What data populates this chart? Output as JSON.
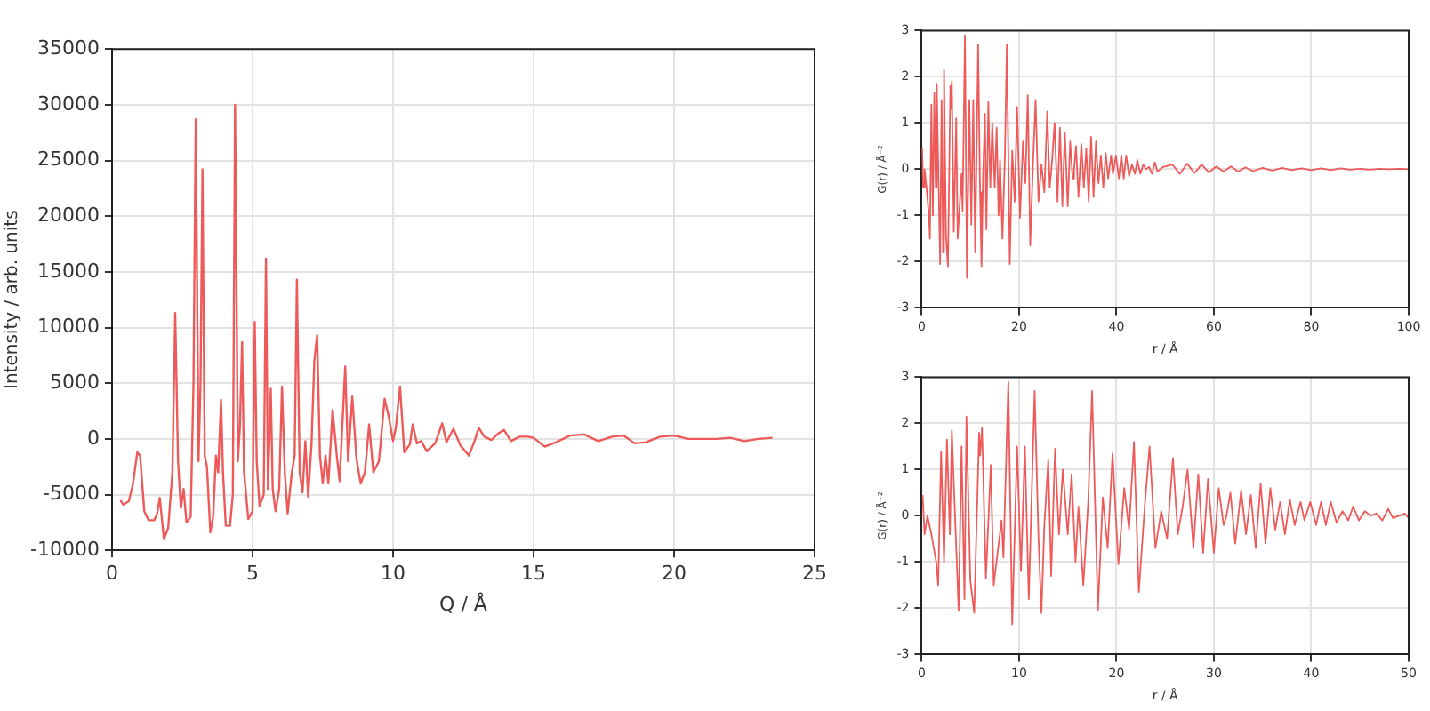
{
  "chart_data": [
    {
      "type": "line",
      "xlabel": "Q / Å",
      "ylabel": "Intensity / arb. units",
      "xlim": [
        0,
        25
      ],
      "xticks": [
        0,
        5,
        10,
        15,
        20,
        25
      ],
      "ylim": [
        -10000,
        35000
      ],
      "yticks": [
        -10000,
        -5000,
        0,
        5000,
        10000,
        15000,
        20000,
        25000,
        30000,
        35000
      ],
      "grid": true,
      "legend": false,
      "marker": "none",
      "line_style": "solid",
      "series": [
        {
          "color": "#ee5a5a",
          "x": [
            0.3,
            0.4,
            0.6,
            0.75,
            0.9,
            1.0,
            1.15,
            1.3,
            1.5,
            1.6,
            1.7,
            1.85,
            2.0,
            2.15,
            2.25,
            2.35,
            2.45,
            2.55,
            2.65,
            2.8,
            2.9,
            2.98,
            3.08,
            3.15,
            3.22,
            3.3,
            3.38,
            3.5,
            3.6,
            3.7,
            3.78,
            3.88,
            3.95,
            4.05,
            4.2,
            4.3,
            4.38,
            4.48,
            4.55,
            4.63,
            4.7,
            4.85,
            5.0,
            5.08,
            5.15,
            5.25,
            5.4,
            5.48,
            5.55,
            5.65,
            5.72,
            5.82,
            5.95,
            6.05,
            6.15,
            6.25,
            6.4,
            6.5,
            6.58,
            6.68,
            6.78,
            6.88,
            6.98,
            7.1,
            7.2,
            7.3,
            7.4,
            7.5,
            7.6,
            7.7,
            7.85,
            8.0,
            8.1,
            8.3,
            8.4,
            8.55,
            8.7,
            8.85,
            9.0,
            9.15,
            9.3,
            9.5,
            9.7,
            9.85,
            10.0,
            10.1,
            10.25,
            10.4,
            10.6,
            10.7,
            10.85,
            11.0,
            11.2,
            11.5,
            11.75,
            11.9,
            12.15,
            12.4,
            12.7,
            12.9,
            13.05,
            13.25,
            13.5,
            13.75,
            13.95,
            14.2,
            14.5,
            14.8,
            15.0,
            15.4,
            15.8,
            16.3,
            16.8,
            17.3,
            17.8,
            18.2,
            18.6,
            19.0,
            19.5,
            20.0,
            20.5,
            21.0,
            21.5,
            22.0,
            22.5,
            23.0,
            23.5
          ],
          "values": [
            -5500,
            -5900,
            -5600,
            -4000,
            -1200,
            -1500,
            -6500,
            -7300,
            -7300,
            -6800,
            -5300,
            -9000,
            -8000,
            -3000,
            11300,
            -2000,
            -6200,
            -4500,
            -7500,
            -7000,
            5000,
            28700,
            -2000,
            5000,
            24200,
            -1500,
            -2500,
            -8400,
            -7000,
            -1500,
            -3000,
            3500,
            -3000,
            -7800,
            -7800,
            -5000,
            30000,
            -2000,
            1000,
            8700,
            -3000,
            -7200,
            -6500,
            10500,
            -2000,
            -6000,
            -5000,
            16200,
            -4500,
            4500,
            -4500,
            -6500,
            -4500,
            4700,
            -3000,
            -6700,
            -3000,
            -1500,
            14300,
            -3000,
            -4800,
            -200,
            -5200,
            -500,
            7000,
            9300,
            -1500,
            -4000,
            -1500,
            -4000,
            2600,
            -1500,
            -3800,
            6500,
            -2000,
            3800,
            -1800,
            -4000,
            -3000,
            1300,
            -3000,
            -2000,
            3600,
            2000,
            -200,
            1000,
            4700,
            -1200,
            -500,
            1300,
            -400,
            -200,
            -1100,
            -400,
            1400,
            -300,
            900,
            -600,
            -1500,
            -200,
            1000,
            200,
            -100,
            500,
            800,
            -200,
            200,
            200,
            100,
            -700,
            -300,
            300,
            400,
            -200,
            200,
            300,
            -400,
            -300,
            200,
            300,
            0,
            0,
            0,
            100,
            -200,
            0,
            100
          ]
        }
      ]
    },
    {
      "type": "line",
      "xlabel": "r / Å",
      "ylabel": "G(r) / Å⁻²",
      "xlim": [
        0,
        100
      ],
      "xticks": [
        0,
        20,
        40,
        60,
        80,
        100
      ],
      "ylim": [
        -3,
        3
      ],
      "yticks": [
        -3,
        -2,
        -1,
        0,
        1,
        2,
        3
      ],
      "grid": true,
      "legend": false,
      "marker": "none",
      "line_style": "solid",
      "series": [
        {
          "color": "#ee5a5a",
          "x": [
            0.1,
            0.3,
            0.6,
            1.0,
            1.5,
            1.7,
            2.0,
            2.3,
            2.6,
            2.9,
            3.1,
            3.5,
            3.8,
            4.1,
            4.4,
            4.6,
            5.0,
            5.4,
            5.9,
            6.0,
            6.2,
            6.6,
            7.1,
            7.4,
            7.8,
            8.2,
            8.4,
            8.9,
            9.3,
            9.8,
            10.2,
            10.6,
            11.0,
            11.6,
            12.0,
            12.3,
            12.6,
            13.0,
            13.3,
            13.7,
            14.1,
            14.5,
            15.0,
            15.4,
            15.8,
            16.1,
            16.6,
            17.1,
            17.5,
            18.1,
            18.6,
            19.1,
            19.6,
            20.2,
            20.8,
            21.3,
            21.8,
            22.3,
            22.9,
            23.4,
            24.0,
            24.6,
            25.2,
            25.8,
            26.3,
            26.8,
            27.3,
            27.9,
            28.4,
            28.9,
            29.4,
            30.0,
            30.5,
            31.0,
            31.3,
            31.7,
            32.2,
            32.8,
            33.3,
            33.8,
            34.3,
            34.8,
            35.3,
            35.8,
            36.3,
            36.8,
            37.3,
            37.8,
            38.3,
            38.9,
            39.3,
            39.9,
            40.5,
            41.0,
            41.5,
            42.0,
            42.6,
            43.2,
            43.8,
            44.3,
            44.9,
            45.5,
            46.1,
            46.7,
            47.3,
            47.9,
            48.4,
            49.0,
            49.6,
            51.5,
            53,
            54.5,
            56,
            57.5,
            59,
            60.5,
            62,
            63.5,
            65,
            66.5,
            68,
            70,
            72,
            74,
            76,
            78,
            80,
            82,
            84,
            86,
            88,
            90,
            92,
            94,
            96,
            98,
            100
          ],
          "values": [
            0.45,
            -0.4,
            0,
            -0.4,
            -1.0,
            -1.5,
            1.4,
            -1.0,
            1.65,
            -0.4,
            1.85,
            -0.4,
            -2.05,
            1.5,
            -1.8,
            2.15,
            -1.4,
            -2.1,
            1.8,
            1.3,
            1.9,
            -1.35,
            1.1,
            -1.5,
            -0.8,
            -0.1,
            -0.9,
            2.9,
            -2.35,
            1.5,
            -1.2,
            1.5,
            -1.8,
            2.7,
            -0.5,
            -2.1,
            -0.2,
            1.2,
            -1.3,
            1.45,
            -0.4,
            1.0,
            -0.4,
            0.9,
            -1.0,
            0.2,
            -1.5,
            0.3,
            2.7,
            -2.05,
            0.4,
            -0.7,
            1.35,
            -1.05,
            0.6,
            -0.3,
            1.6,
            -1.65,
            0.2,
            1.5,
            -0.7,
            0.1,
            -0.5,
            1.25,
            -0.4,
            0.2,
            1.0,
            -0.7,
            0.9,
            -0.8,
            0.8,
            -0.8,
            0.6,
            -0.2,
            0.0,
            0.5,
            -0.6,
            0.55,
            -0.4,
            0.45,
            -0.7,
            0.7,
            -0.6,
            0.6,
            -0.3,
            0.3,
            -0.4,
            0.35,
            -0.2,
            0.3,
            -0.1,
            0.3,
            -0.2,
            0.3,
            -0.2,
            0.3,
            -0.15,
            0.1,
            -0.1,
            0.2,
            -0.1,
            0.1,
            0.0,
            0.05,
            -0.1,
            0.15,
            -0.05,
            0.0,
            0.05,
            0.1,
            -0.1,
            0.12,
            -0.08,
            0.1,
            -0.07,
            0.06,
            -0.05,
            0.06,
            -0.05,
            0.04,
            -0.04,
            0.03,
            -0.03,
            0.03,
            -0.02,
            0.02,
            -0.02,
            0.02,
            -0.02,
            0.02,
            -0.01,
            0.01,
            -0.01,
            0.01,
            0,
            0.01,
            0
          ]
        }
      ]
    },
    {
      "type": "line",
      "xlabel": "r / Å",
      "ylabel": "G(r) / Å⁻²",
      "xlim": [
        0,
        50
      ],
      "xticks": [
        0,
        10,
        20,
        30,
        40,
        50
      ],
      "ylim": [
        -3,
        3
      ],
      "yticks": [
        -3,
        -2,
        -1,
        0,
        1,
        2,
        3
      ],
      "grid": true,
      "legend": false,
      "marker": "none",
      "line_style": "solid",
      "series": [
        {
          "color": "#ee5a5a",
          "x": [
            0.1,
            0.3,
            0.6,
            1.0,
            1.5,
            1.7,
            2.0,
            2.3,
            2.6,
            2.9,
            3.1,
            3.5,
            3.8,
            4.1,
            4.4,
            4.6,
            5.0,
            5.4,
            5.9,
            6.0,
            6.2,
            6.6,
            7.1,
            7.4,
            7.8,
            8.2,
            8.4,
            8.9,
            9.3,
            9.8,
            10.2,
            10.6,
            11.0,
            11.6,
            12.0,
            12.3,
            12.6,
            13.0,
            13.3,
            13.7,
            14.1,
            14.5,
            15.0,
            15.4,
            15.8,
            16.1,
            16.6,
            17.1,
            17.5,
            18.1,
            18.6,
            19.1,
            19.6,
            20.2,
            20.8,
            21.3,
            21.8,
            22.3,
            22.9,
            23.4,
            24.0,
            24.6,
            25.2,
            25.8,
            26.3,
            26.8,
            27.3,
            27.9,
            28.4,
            28.9,
            29.4,
            30.0,
            30.5,
            31.0,
            31.3,
            31.7,
            32.2,
            32.8,
            33.3,
            33.8,
            34.3,
            34.8,
            35.3,
            35.8,
            36.3,
            36.8,
            37.3,
            37.8,
            38.3,
            38.9,
            39.3,
            39.9,
            40.5,
            41.0,
            41.5,
            42.0,
            42.6,
            43.2,
            43.8,
            44.3,
            44.9,
            45.5,
            46.1,
            46.7,
            47.3,
            47.9,
            48.4,
            49.0,
            49.6,
            50.0
          ],
          "values": [
            0.45,
            -0.4,
            0,
            -0.4,
            -1.0,
            -1.5,
            1.4,
            -1.0,
            1.65,
            -0.4,
            1.85,
            -0.4,
            -2.05,
            1.5,
            -1.8,
            2.15,
            -1.4,
            -2.1,
            1.8,
            1.3,
            1.9,
            -1.35,
            1.1,
            -1.5,
            -0.8,
            -0.1,
            -0.9,
            2.9,
            -2.35,
            1.5,
            -1.2,
            1.5,
            -1.8,
            2.7,
            -0.5,
            -2.1,
            -0.2,
            1.2,
            -1.3,
            1.45,
            -0.4,
            1.0,
            -0.4,
            0.9,
            -1.0,
            0.2,
            -1.5,
            0.3,
            2.7,
            -2.05,
            0.4,
            -0.7,
            1.35,
            -1.05,
            0.6,
            -0.3,
            1.6,
            -1.65,
            0.2,
            1.5,
            -0.7,
            0.1,
            -0.5,
            1.25,
            -0.4,
            0.2,
            1.0,
            -0.7,
            0.9,
            -0.8,
            0.8,
            -0.8,
            0.6,
            -0.2,
            0.0,
            0.5,
            -0.6,
            0.55,
            -0.4,
            0.45,
            -0.7,
            0.7,
            -0.6,
            0.6,
            -0.3,
            0.3,
            -0.4,
            0.35,
            -0.2,
            0.3,
            -0.1,
            0.3,
            -0.2,
            0.3,
            -0.2,
            0.3,
            -0.15,
            0.1,
            -0.1,
            0.2,
            -0.1,
            0.1,
            0.0,
            0.05,
            -0.1,
            0.15,
            -0.05,
            0.0,
            0.05,
            -0.05
          ]
        }
      ]
    }
  ]
}
